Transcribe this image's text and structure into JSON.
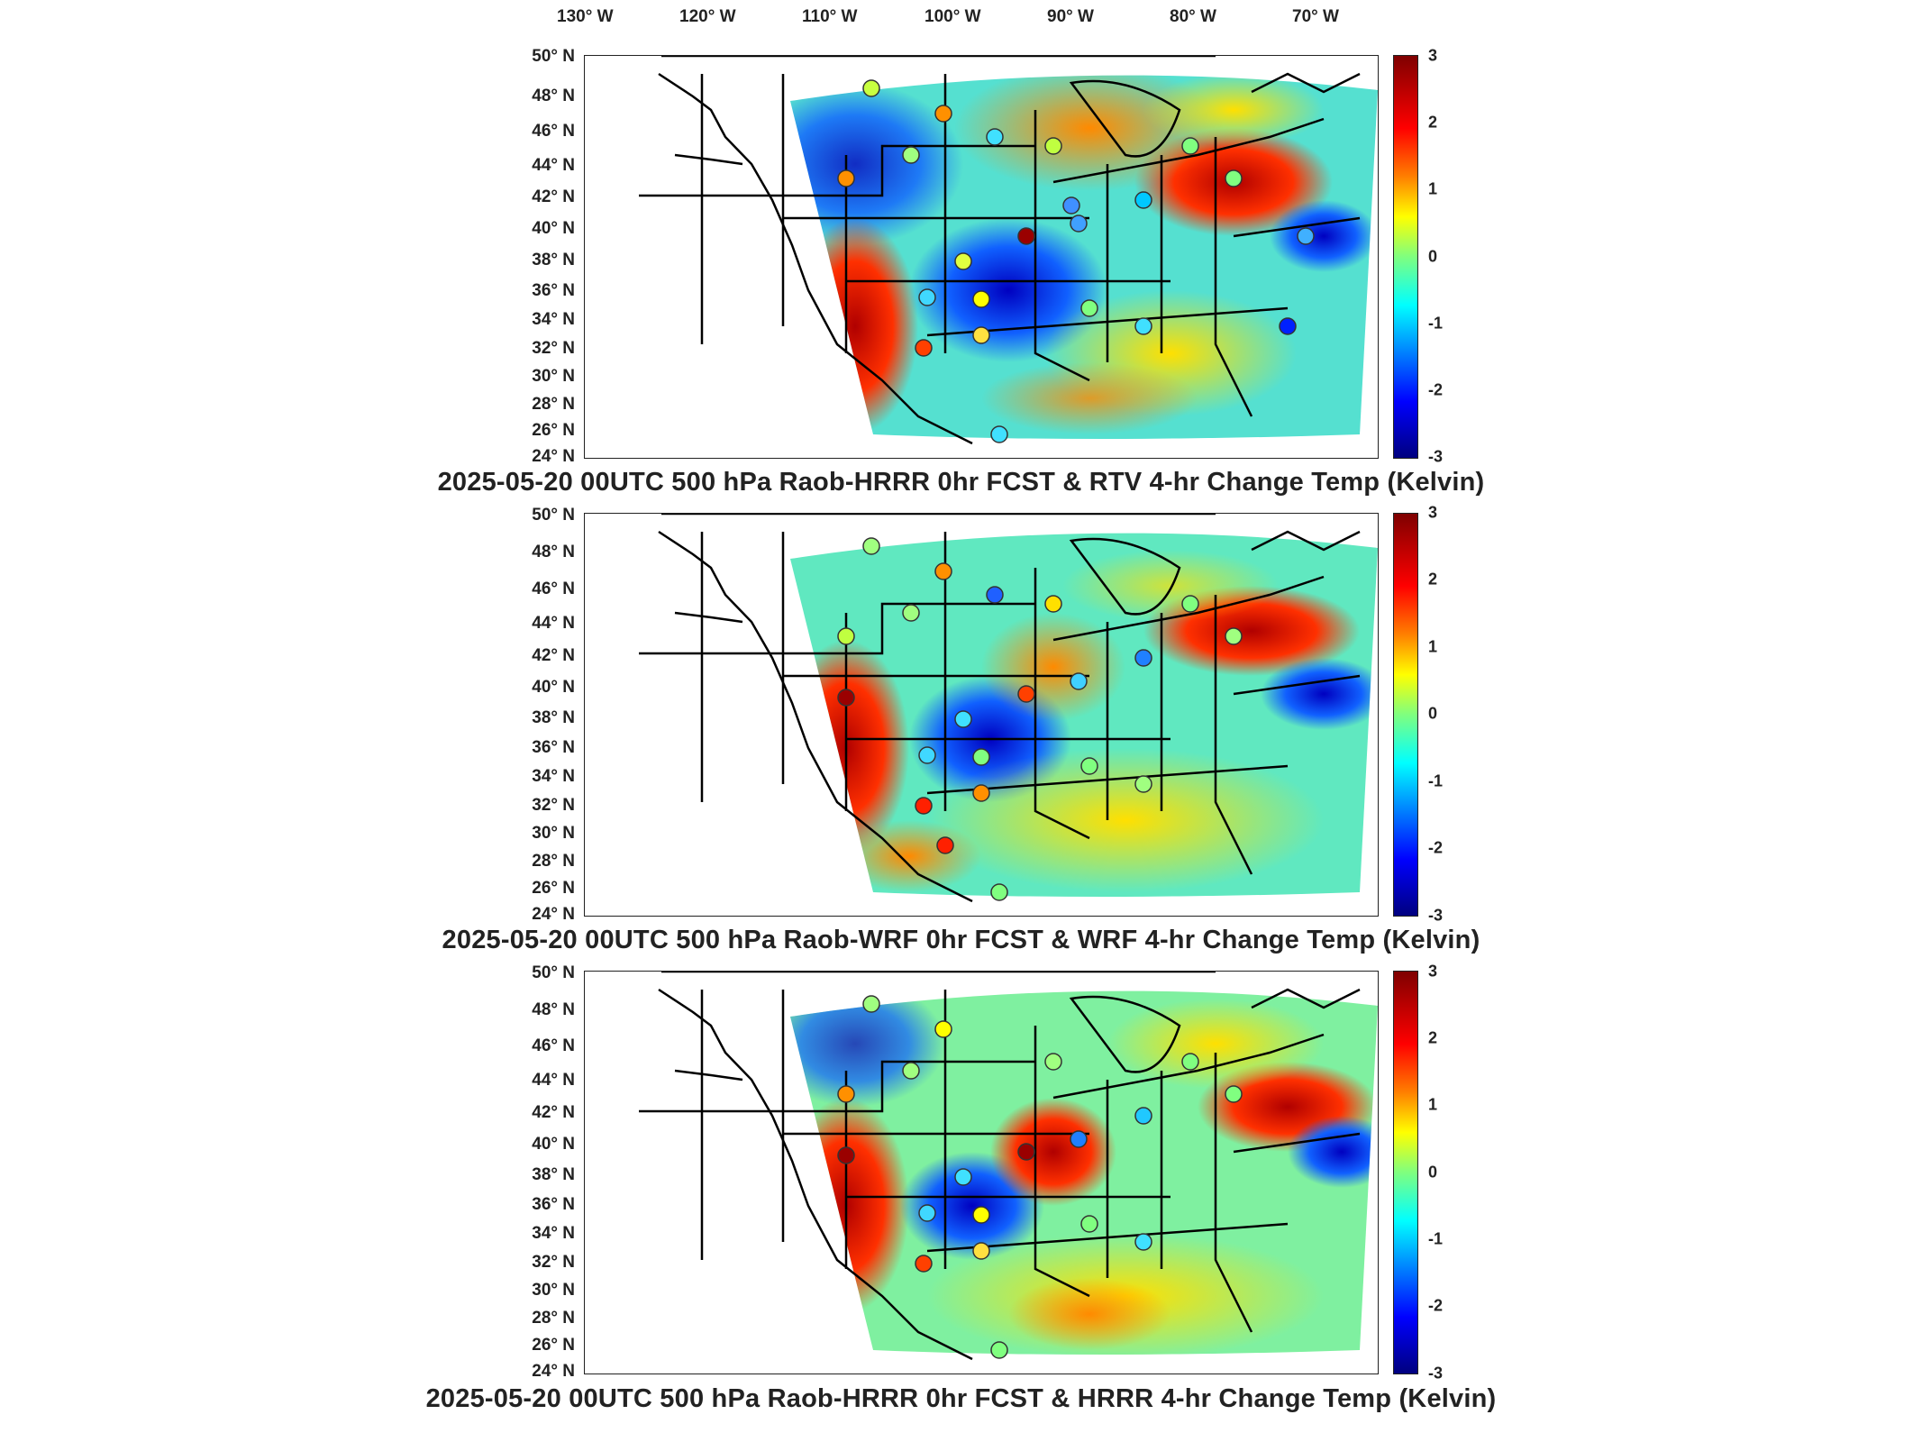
{
  "lon_labels": [
    "130° W",
    "120° W",
    "110° W",
    "100° W",
    "90° W",
    "80° W",
    "70° W"
  ],
  "lat_labels": [
    "50° N",
    "48° N",
    "46° N",
    "44° N",
    "42° N",
    "40° N",
    "38° N",
    "36° N",
    "34° N",
    "32° N",
    "30° N",
    "28° N",
    "26° N",
    "24° N"
  ],
  "colorbar": {
    "ticks": [
      "3",
      "2",
      "1",
      "0",
      "-1",
      "-2",
      "-3"
    ],
    "range": [
      -3,
      3
    ],
    "colormap": "jet"
  },
  "panels": [
    {
      "title": "2025-05-20 00UTC 500 hPa Raob-HRRR 0hr FCST & RTV 4-hr Change Temp (Kelvin)"
    },
    {
      "title": "2025-05-20 00UTC 500 hPa Raob-WRF 0hr FCST & WRF 4-hr Change Temp (Kelvin)"
    },
    {
      "title": "2025-05-20 00UTC 500 hPa Raob-HRRR 0hr FCST & HRRR 4-hr Change Temp (Kelvin)"
    }
  ],
  "colors": {
    "dark_red": "#8b0000",
    "red": "#ff2a00",
    "orange": "#ff9900",
    "yellow": "#ffff00",
    "green": "#80ff80",
    "cyan": "#00ffff",
    "blue": "#0080ff",
    "dark_blue": "#00008b"
  }
}
